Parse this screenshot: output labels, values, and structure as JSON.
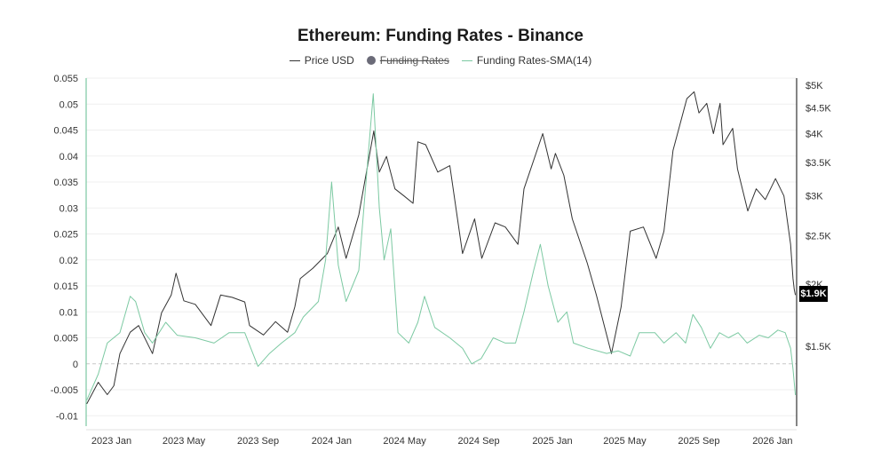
{
  "chart_data": {
    "type": "line",
    "title": "Ethereum: Funding Rates - Binance",
    "legend": {
      "placement": "top-center",
      "items": [
        {
          "label": "Price USD",
          "style": "line",
          "color": "#333333",
          "hidden": false
        },
        {
          "label": "Funding Rates",
          "style": "dot",
          "color": "#6b6b78",
          "hidden": true
        },
        {
          "label": "Funding Rates-SMA(14)",
          "style": "line",
          "color": "#7cc9a2",
          "hidden": false
        }
      ]
    },
    "x_axis": {
      "type": "date",
      "range": [
        "2022-11-20",
        "2026-02-10"
      ],
      "tick_labels": [
        {
          "date": "2023-01-01",
          "label": "2023 Jan"
        },
        {
          "date": "2023-05-01",
          "label": "2023 May"
        },
        {
          "date": "2023-09-01",
          "label": "2023 Sep"
        },
        {
          "date": "2024-01-01",
          "label": "2024 Jan"
        },
        {
          "date": "2024-05-01",
          "label": "2024 May"
        },
        {
          "date": "2024-09-01",
          "label": "2024 Sep"
        },
        {
          "date": "2025-01-01",
          "label": "2025 Jan"
        },
        {
          "date": "2025-05-01",
          "label": "2025 May"
        },
        {
          "date": "2025-09-01",
          "label": "2025 Sep"
        },
        {
          "date": "2026-01-01",
          "label": "2026 Jan"
        }
      ]
    },
    "y_left": {
      "range": [
        -0.012,
        0.055
      ],
      "ticks": [
        {
          "v": 0.055,
          "label": "0.055"
        },
        {
          "v": 0.05,
          "label": "0.05"
        },
        {
          "v": 0.045,
          "label": "0.045"
        },
        {
          "v": 0.04,
          "label": "0.04"
        },
        {
          "v": 0.035,
          "label": "0.035"
        },
        {
          "v": 0.03,
          "label": "0.03"
        },
        {
          "v": 0.025,
          "label": "0.025"
        },
        {
          "v": 0.02,
          "label": "0.02"
        },
        {
          "v": 0.015,
          "label": "0.015"
        },
        {
          "v": 0.01,
          "label": "0.01"
        },
        {
          "v": 0.005,
          "label": "0.005"
        },
        {
          "v": 0,
          "label": "0"
        },
        {
          "v": -0.005,
          "label": "-0.005"
        },
        {
          "v": -0.01,
          "label": "-0.01"
        }
      ]
    },
    "y_right": {
      "scale": "log",
      "ticks": [
        {
          "v": 5000,
          "label": "$5K"
        },
        {
          "v": 4500,
          "label": "$4.5K"
        },
        {
          "v": 4000,
          "label": "$4K"
        },
        {
          "v": 3500,
          "label": "$3.5K"
        },
        {
          "v": 3000,
          "label": "$3K"
        },
        {
          "v": 2500,
          "label": "$2.5K"
        },
        {
          "v": 2000,
          "label": "$2K"
        },
        {
          "v": 1500,
          "label": "$1.5K"
        }
      ],
      "current_price_label": "$1.9K"
    },
    "grid": true,
    "series": [
      {
        "name": "Price USD",
        "axis": "right",
        "color": "#333333",
        "points": [
          [
            "2022-11-21",
            1150
          ],
          [
            "2022-12-10",
            1270
          ],
          [
            "2022-12-25",
            1200
          ],
          [
            "2023-01-05",
            1250
          ],
          [
            "2023-01-15",
            1450
          ],
          [
            "2023-02-01",
            1600
          ],
          [
            "2023-02-15",
            1650
          ],
          [
            "2023-03-10",
            1450
          ],
          [
            "2023-03-25",
            1750
          ],
          [
            "2023-04-10",
            1900
          ],
          [
            "2023-04-18",
            2100
          ],
          [
            "2023-05-01",
            1850
          ],
          [
            "2023-05-20",
            1820
          ],
          [
            "2023-06-15",
            1650
          ],
          [
            "2023-07-01",
            1900
          ],
          [
            "2023-07-20",
            1880
          ],
          [
            "2023-08-10",
            1840
          ],
          [
            "2023-08-18",
            1650
          ],
          [
            "2023-09-10",
            1580
          ],
          [
            "2023-09-30",
            1680
          ],
          [
            "2023-10-20",
            1600
          ],
          [
            "2023-11-01",
            1800
          ],
          [
            "2023-11-10",
            2050
          ],
          [
            "2023-12-01",
            2150
          ],
          [
            "2023-12-25",
            2300
          ],
          [
            "2024-01-12",
            2600
          ],
          [
            "2024-01-25",
            2250
          ],
          [
            "2024-02-15",
            2750
          ],
          [
            "2024-03-11",
            4050
          ],
          [
            "2024-03-20",
            3350
          ],
          [
            "2024-04-01",
            3600
          ],
          [
            "2024-04-15",
            3100
          ],
          [
            "2024-04-30",
            3000
          ],
          [
            "2024-05-15",
            2900
          ],
          [
            "2024-05-23",
            3850
          ],
          [
            "2024-06-05",
            3800
          ],
          [
            "2024-06-25",
            3350
          ],
          [
            "2024-07-15",
            3450
          ],
          [
            "2024-08-05",
            2300
          ],
          [
            "2024-08-25",
            2700
          ],
          [
            "2024-09-06",
            2250
          ],
          [
            "2024-09-28",
            2650
          ],
          [
            "2024-10-15",
            2600
          ],
          [
            "2024-11-05",
            2400
          ],
          [
            "2024-11-15",
            3100
          ],
          [
            "2024-12-16",
            4000
          ],
          [
            "2024-12-30",
            3400
          ],
          [
            "2025-01-06",
            3650
          ],
          [
            "2025-01-20",
            3300
          ],
          [
            "2025-02-03",
            2700
          ],
          [
            "2025-02-28",
            2200
          ],
          [
            "2025-03-15",
            1900
          ],
          [
            "2025-04-09",
            1450
          ],
          [
            "2025-04-25",
            1800
          ],
          [
            "2025-05-10",
            2550
          ],
          [
            "2025-06-01",
            2600
          ],
          [
            "2025-06-22",
            2250
          ],
          [
            "2025-07-05",
            2550
          ],
          [
            "2025-07-20",
            3700
          ],
          [
            "2025-08-12",
            4700
          ],
          [
            "2025-08-24",
            4850
          ],
          [
            "2025-09-01",
            4400
          ],
          [
            "2025-09-14",
            4600
          ],
          [
            "2025-09-25",
            4000
          ],
          [
            "2025-10-06",
            4600
          ],
          [
            "2025-10-11",
            3800
          ],
          [
            "2025-10-27",
            4100
          ],
          [
            "2025-11-04",
            3400
          ],
          [
            "2025-11-21",
            2800
          ],
          [
            "2025-12-05",
            3100
          ],
          [
            "2025-12-20",
            2950
          ],
          [
            "2026-01-06",
            3250
          ],
          [
            "2026-01-20",
            3000
          ],
          [
            "2026-01-31",
            2400
          ],
          [
            "2026-02-04",
            2050
          ],
          [
            "2026-02-06",
            1950
          ],
          [
            "2026-02-08",
            1900
          ]
        ]
      },
      {
        "name": "Funding Rates-SMA(14)",
        "axis": "left",
        "color": "#7cc9a2",
        "points": [
          [
            "2022-11-21",
            -0.007
          ],
          [
            "2022-12-10",
            -0.002
          ],
          [
            "2022-12-25",
            0.004
          ],
          [
            "2023-01-15",
            0.006
          ],
          [
            "2023-02-01",
            0.013
          ],
          [
            "2023-02-10",
            0.012
          ],
          [
            "2023-02-25",
            0.006
          ],
          [
            "2023-03-10",
            0.004
          ],
          [
            "2023-04-01",
            0.008
          ],
          [
            "2023-04-20",
            0.0055
          ],
          [
            "2023-05-20",
            0.005
          ],
          [
            "2023-06-20",
            0.004
          ],
          [
            "2023-07-15",
            0.006
          ],
          [
            "2023-08-10",
            0.006
          ],
          [
            "2023-08-20",
            0.003
          ],
          [
            "2023-09-01",
            -0.0005
          ],
          [
            "2023-09-20",
            0.002
          ],
          [
            "2023-10-10",
            0.004
          ],
          [
            "2023-11-01",
            0.006
          ],
          [
            "2023-11-15",
            0.009
          ],
          [
            "2023-12-10",
            0.012
          ],
          [
            "2023-12-22",
            0.02
          ],
          [
            "2024-01-01",
            0.035
          ],
          [
            "2024-01-12",
            0.019
          ],
          [
            "2024-01-25",
            0.012
          ],
          [
            "2024-02-15",
            0.018
          ],
          [
            "2024-03-05",
            0.045
          ],
          [
            "2024-03-10",
            0.052
          ],
          [
            "2024-03-20",
            0.03
          ],
          [
            "2024-03-28",
            0.02
          ],
          [
            "2024-04-08",
            0.026
          ],
          [
            "2024-04-20",
            0.006
          ],
          [
            "2024-05-08",
            0.004
          ],
          [
            "2024-05-23",
            0.008
          ],
          [
            "2024-06-03",
            0.013
          ],
          [
            "2024-06-20",
            0.007
          ],
          [
            "2024-07-15",
            0.005
          ],
          [
            "2024-08-05",
            0.003
          ],
          [
            "2024-08-20",
            0.0
          ],
          [
            "2024-09-05",
            0.001
          ],
          [
            "2024-09-25",
            0.005
          ],
          [
            "2024-10-15",
            0.004
          ],
          [
            "2024-11-01",
            0.004
          ],
          [
            "2024-11-15",
            0.01
          ],
          [
            "2024-12-01",
            0.018
          ],
          [
            "2024-12-12",
            0.023
          ],
          [
            "2024-12-25",
            0.015
          ],
          [
            "2025-01-10",
            0.008
          ],
          [
            "2025-01-25",
            0.01
          ],
          [
            "2025-02-05",
            0.004
          ],
          [
            "2025-03-01",
            0.003
          ],
          [
            "2025-04-01",
            0.002
          ],
          [
            "2025-04-20",
            0.0025
          ],
          [
            "2025-05-10",
            0.0015
          ],
          [
            "2025-05-25",
            0.006
          ],
          [
            "2025-06-20",
            0.006
          ],
          [
            "2025-07-05",
            0.004
          ],
          [
            "2025-07-25",
            0.006
          ],
          [
            "2025-08-10",
            0.004
          ],
          [
            "2025-08-22",
            0.0095
          ],
          [
            "2025-09-05",
            0.007
          ],
          [
            "2025-09-20",
            0.003
          ],
          [
            "2025-10-05",
            0.006
          ],
          [
            "2025-10-20",
            0.005
          ],
          [
            "2025-11-05",
            0.006
          ],
          [
            "2025-11-20",
            0.004
          ],
          [
            "2025-12-10",
            0.0055
          ],
          [
            "2025-12-25",
            0.005
          ],
          [
            "2026-01-10",
            0.0065
          ],
          [
            "2026-01-22",
            0.006
          ],
          [
            "2026-01-31",
            0.003
          ],
          [
            "2026-02-04",
            -0.001
          ],
          [
            "2026-02-08",
            -0.006
          ]
        ]
      }
    ]
  }
}
